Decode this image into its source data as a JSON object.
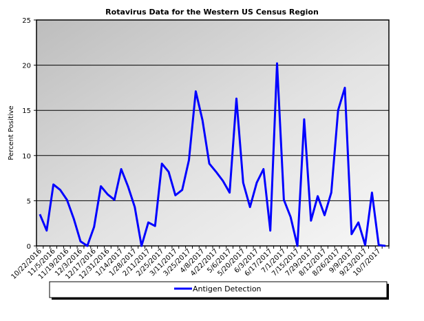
{
  "chart_data": {
    "type": "line",
    "title": "Rotavirus Data for the Western US Census Region",
    "xlabel": "",
    "ylabel": "Percent Positive",
    "ylim": [
      0,
      25
    ],
    "yticks": [
      0,
      5,
      10,
      15,
      20,
      25
    ],
    "grid": "horizontal major gridlines",
    "legend_position": "bottom",
    "x_tick_labels": [
      "10/22/2016",
      "11/5/2016",
      "11/19/2016",
      "12/3/2016",
      "12/17/2016",
      "12/31/2016",
      "1/14/2017",
      "1/28/2017",
      "2/11/2017",
      "2/25/2017",
      "3/11/2017",
      "3/25/2017",
      "4/8/2017",
      "4/22/2017",
      "5/6/2017",
      "5/20/2017",
      "6/3/2017",
      "6/17/2017",
      "7/1/2017",
      "7/15/2017",
      "7/29/2017",
      "8/12/2017",
      "8/26/2017",
      "9/9/2017",
      "9/23/2017",
      "10/7/2017"
    ],
    "series": [
      {
        "name": "Antigen Detection",
        "color": "#0000FF",
        "values": [
          3.5,
          1.7,
          6.8,
          6.2,
          5.1,
          3.0,
          0.5,
          0.0,
          2.1,
          6.6,
          5.7,
          5.1,
          8.5,
          6.6,
          4.3,
          0.0,
          2.6,
          2.2,
          9.1,
          8.2,
          5.6,
          6.2,
          9.5,
          17.1,
          13.9,
          9.1,
          8.2,
          7.2,
          5.9,
          16.3,
          7.0,
          4.3,
          7.0,
          8.5,
          1.7,
          20.2,
          5.1,
          3.2,
          0.0,
          14.0,
          2.8,
          5.5,
          3.4,
          5.9,
          15.0,
          17.5,
          1.3,
          2.6,
          0.1,
          5.9,
          0.1,
          0.0
        ]
      }
    ]
  },
  "legend": {
    "label": "Antigen Detection"
  }
}
